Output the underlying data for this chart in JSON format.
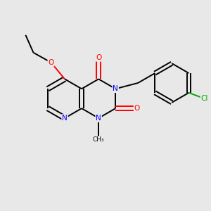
{
  "bg_color": "#e8e8e8",
  "bond_color": "#000000",
  "N_color": "#0000ff",
  "O_color": "#ff0000",
  "Cl_color": "#00aa00",
  "line_width": 1.4,
  "figsize": [
    3.0,
    3.0
  ],
  "dpi": 100,
  "xlim": [
    0.05,
    0.95
  ],
  "ylim": [
    0.1,
    0.9
  ]
}
